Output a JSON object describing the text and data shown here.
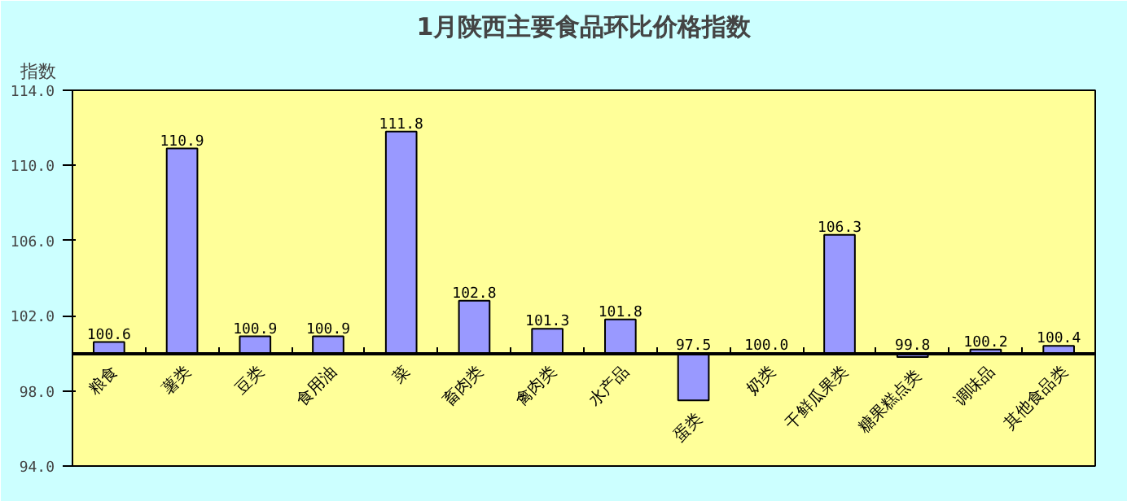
{
  "chart_data": {
    "type": "bar",
    "title": "1月陕西主要食品环比价格指数",
    "ylabel": "指数",
    "categories": [
      "粮食",
      "薯类",
      "豆类",
      "食用油",
      "菜",
      "畜肉类",
      "禽肉类",
      "水产品",
      "蛋类",
      "奶类",
      "干鲜瓜果类",
      "糖果糕点类",
      "调味品",
      "其他食品类"
    ],
    "base": [
      100,
      100,
      100,
      100,
      100,
      100,
      100,
      100,
      100,
      100,
      100,
      100,
      100,
      100
    ],
    "values": [
      0.6,
      10.9,
      0.9,
      0.9,
      11.8,
      2.8,
      1.3,
      1.8,
      -2.5,
      0.0,
      6.3,
      -0.2,
      0.2,
      0.4
    ],
    "value_labels": [
      "100.6",
      "110.9",
      "100.9",
      "100.9",
      "111.8",
      "102.8",
      "101.3",
      "101.8",
      "97.5",
      "100.0",
      "106.3",
      "99.8",
      "100.2",
      "100.4"
    ],
    "color": "#9999ff",
    "ylim": [
      94,
      114
    ],
    "yticks": [
      {
        "value": 94,
        "label": "94.0"
      },
      {
        "value": 98,
        "label": "98.0"
      },
      {
        "value": 102,
        "label": "102.0"
      },
      {
        "value": 106,
        "label": "106.0"
      },
      {
        "value": 110,
        "label": "110.0"
      },
      {
        "value": 114,
        "label": "114.0"
      }
    ],
    "grid": false
  }
}
